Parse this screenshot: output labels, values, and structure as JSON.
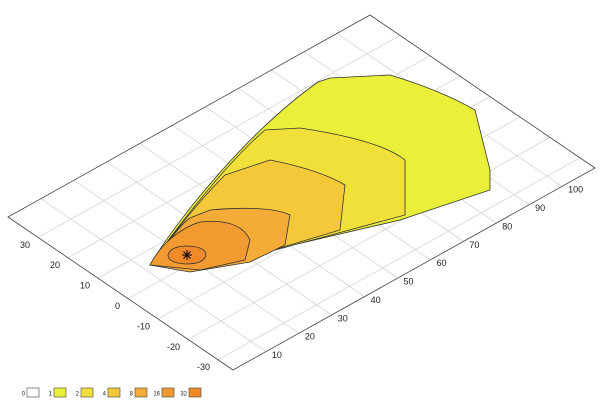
{
  "chart_data": {
    "type": "contour",
    "xlim": [
      0,
      110
    ],
    "xticks": [
      10,
      20,
      30,
      40,
      50,
      60,
      70,
      80,
      90,
      100
    ],
    "ylim": [
      -35,
      40
    ],
    "yticks": [
      -30,
      -20,
      -10,
      0,
      10,
      20,
      30
    ],
    "grid": true,
    "levels": [
      0,
      1,
      2,
      4,
      8,
      16,
      32
    ],
    "colors": [
      "#ffffff",
      "#eaf03a",
      "#f2e03a",
      "#f5c83a",
      "#f5ab38",
      "#f39a30",
      "#f08a28"
    ],
    "legend": "bottom-left"
  }
}
